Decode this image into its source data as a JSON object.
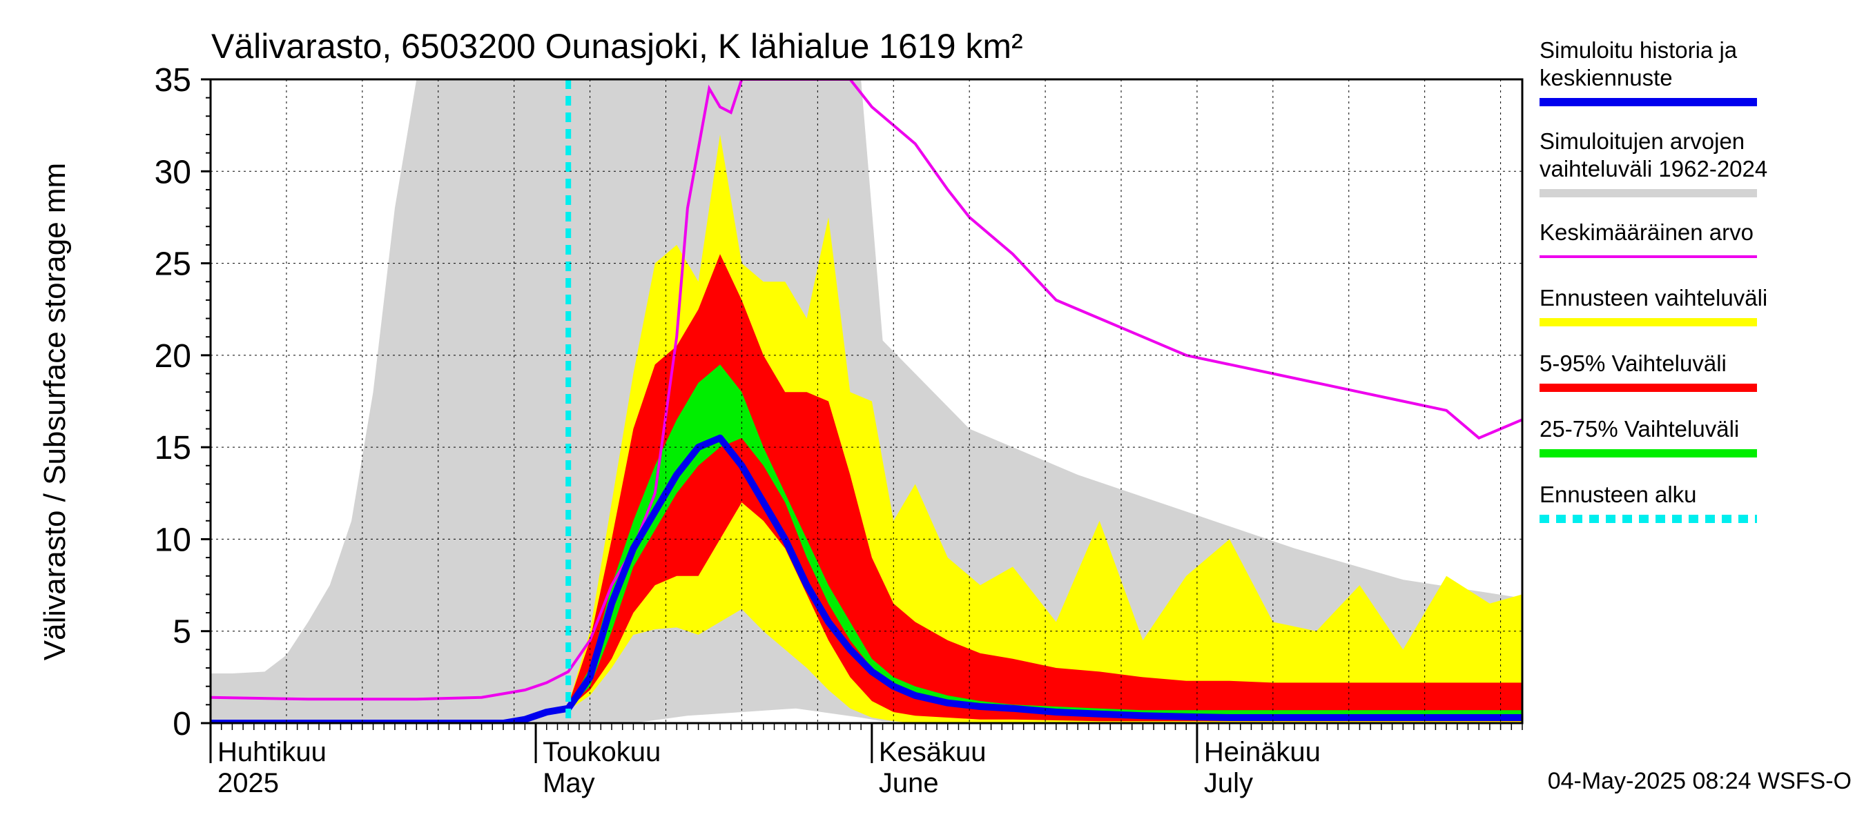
{
  "chart_data": {
    "type": "area",
    "title": "Välivarasto, 6503200 Ounasjoki, K lähialue 1619 km²",
    "ylabel": "Välivarasto / Subsurface storage  mm",
    "ylim": [
      0,
      35
    ],
    "yticks": [
      0,
      5,
      10,
      15,
      20,
      25,
      30,
      35
    ],
    "xlim": [
      "2025-04-01",
      "2025-07-31"
    ],
    "month_labels": [
      {
        "date": "2025-04-01",
        "fi": "Huhtikuu",
        "en": "2025"
      },
      {
        "date": "2025-05-01",
        "fi": "Toukokuu",
        "en": "May"
      },
      {
        "date": "2025-06-01",
        "fi": "Kesäkuu",
        "en": "June"
      },
      {
        "date": "2025-07-01",
        "fi": "Heinäkuu",
        "en": "July"
      }
    ],
    "grid": true,
    "legend_position": "right",
    "colors": {
      "history": "#0000ee",
      "range_hist": "#d3d3d3",
      "mean": "#ee00ee",
      "range_fc": "#ffff00",
      "p5_95": "#ff0000",
      "p25_75": "#00ee00",
      "forecast_start": "#00eeee"
    },
    "legend": [
      {
        "key": "history",
        "lines": [
          "Simuloitu historia ja",
          "keskiennuste"
        ],
        "style": "line"
      },
      {
        "key": "range_hist",
        "lines": [
          "Simuloitujen arvojen",
          "vaihteluväli 1962-2024"
        ],
        "style": "line"
      },
      {
        "key": "mean",
        "lines": [
          "Keskimääräinen arvo"
        ],
        "style": "thin"
      },
      {
        "key": "range_fc",
        "lines": [
          "Ennusteen vaihteluväli"
        ],
        "style": "line"
      },
      {
        "key": "p5_95",
        "lines": [
          "5-95% Vaihteluväli"
        ],
        "style": "line"
      },
      {
        "key": "p25_75",
        "lines": [
          "25-75% Vaihteluväli"
        ],
        "style": "line"
      },
      {
        "key": "forecast_start",
        "lines": [
          "Ennusteen alku"
        ],
        "style": "dashed"
      }
    ],
    "forecast_start": "2025-05-04",
    "footer": "04-May-2025 08:24 WSFS-O",
    "series": {
      "hist_range": {
        "x": [
          "2025-04-01",
          "2025-04-03",
          "2025-04-06",
          "2025-04-08",
          "2025-04-10",
          "2025-04-12",
          "2025-04-14",
          "2025-04-16",
          "2025-04-18",
          "2025-04-20",
          "2025-04-22",
          "2025-04-24",
          "2025-04-26",
          "2025-04-28",
          "2025-04-30",
          "2025-05-05",
          "2025-05-10",
          "2025-05-15",
          "2025-05-20",
          "2025-05-25",
          "2025-05-31",
          "2025-06-02",
          "2025-06-10",
          "2025-06-20",
          "2025-06-30",
          "2025-07-10",
          "2025-07-20",
          "2025-07-31"
        ],
        "lower": [
          0,
          0,
          0,
          0,
          0,
          0,
          0,
          0,
          0,
          0,
          0,
          0,
          0,
          0,
          0,
          0,
          0,
          0.4,
          0.6,
          0.8,
          0.3,
          0.1,
          0.05,
          0,
          0,
          0,
          0,
          0
        ],
        "upper": [
          2.7,
          2.7,
          2.8,
          3.7,
          5.5,
          7.5,
          11,
          18,
          28,
          35,
          35,
          35,
          35,
          35,
          35,
          35,
          35,
          35,
          35,
          35,
          35,
          20.8,
          16,
          13.5,
          11.5,
          9.5,
          7.8,
          6.8
        ]
      },
      "mean": {
        "x": [
          "2025-04-01",
          "2025-04-10",
          "2025-04-20",
          "2025-04-26",
          "2025-04-30",
          "2025-05-02",
          "2025-05-04",
          "2025-05-06",
          "2025-05-08",
          "2025-05-10",
          "2025-05-12",
          "2025-05-14",
          "2025-05-15",
          "2025-05-17",
          "2025-05-18",
          "2025-05-19",
          "2025-05-20",
          "2025-05-30",
          "2025-06-01",
          "2025-06-03",
          "2025-06-05",
          "2025-06-08",
          "2025-06-10",
          "2025-06-14",
          "2025-06-18",
          "2025-06-22",
          "2025-06-26",
          "2025-06-30",
          "2025-07-04",
          "2025-07-08",
          "2025-07-12",
          "2025-07-16",
          "2025-07-20",
          "2025-07-24",
          "2025-07-27",
          "2025-07-29",
          "2025-07-31"
        ],
        "y": [
          1.4,
          1.3,
          1.3,
          1.4,
          1.8,
          2.2,
          2.8,
          4.5,
          7.5,
          9.5,
          12.5,
          21,
          28,
          34.5,
          33.5,
          33.2,
          35,
          35,
          33.5,
          32.5,
          31.5,
          29,
          27.5,
          25.5,
          23,
          22,
          21,
          20,
          19.5,
          19,
          18.5,
          18,
          17.5,
          17,
          15.5,
          16,
          16.5
        ]
      },
      "forecast": {
        "x": [
          "2025-05-04",
          "2025-05-06",
          "2025-05-08",
          "2025-05-10",
          "2025-05-12",
          "2025-05-14",
          "2025-05-16",
          "2025-05-18",
          "2025-05-20",
          "2025-05-22",
          "2025-05-24",
          "2025-05-26",
          "2025-05-28",
          "2025-05-30",
          "2025-06-01",
          "2025-06-03",
          "2025-06-05",
          "2025-06-08",
          "2025-06-11",
          "2025-06-14",
          "2025-06-18",
          "2025-06-22",
          "2025-06-26",
          "2025-06-30",
          "2025-07-04",
          "2025-07-08",
          "2025-07-12",
          "2025-07-16",
          "2025-07-20",
          "2025-07-24",
          "2025-07-28",
          "2025-07-31"
        ],
        "min": [
          0.7,
          1.5,
          3,
          4.8,
          5.1,
          5.2,
          4.8,
          5.5,
          6.2,
          5,
          4,
          3,
          1.8,
          0.8,
          0.3,
          0.1,
          0,
          0,
          0,
          0,
          0,
          0,
          0,
          0,
          0,
          0,
          0,
          0,
          0,
          0,
          0,
          0
        ],
        "p5": [
          0.8,
          1.8,
          3.5,
          6,
          7.5,
          8,
          8,
          10,
          12,
          11,
          9.5,
          7,
          4.5,
          2.5,
          1.2,
          0.6,
          0.4,
          0.3,
          0.2,
          0.2,
          0.15,
          0.1,
          0.1,
          0.1,
          0.1,
          0.1,
          0.1,
          0.1,
          0.1,
          0.1,
          0.1,
          0.1
        ],
        "p25": [
          0.8,
          2,
          5,
          8.5,
          10.5,
          12.5,
          14,
          15,
          15.5,
          14,
          12,
          9,
          6.5,
          4.5,
          3,
          2,
          1.5,
          1.1,
          0.9,
          0.8,
          0.6,
          0.5,
          0.5,
          0.4,
          0.4,
          0.4,
          0.4,
          0.4,
          0.4,
          0.4,
          0.4,
          0.4
        ],
        "median": [
          0.8,
          2.5,
          6.5,
          9.5,
          11.5,
          13.5,
          15,
          15.5,
          14,
          12,
          10,
          7.5,
          5.5,
          4,
          2.8,
          2,
          1.5,
          1.1,
          0.9,
          0.8,
          0.6,
          0.5,
          0.4,
          0.35,
          0.3,
          0.3,
          0.3,
          0.3,
          0.3,
          0.3,
          0.3,
          0.3
        ],
        "p75": [
          0.9,
          3,
          7.5,
          11,
          14,
          16.5,
          18.5,
          19.5,
          18,
          15,
          12.5,
          10,
          7.5,
          5.5,
          3.5,
          2.5,
          2,
          1.5,
          1.2,
          1,
          0.9,
          0.8,
          0.7,
          0.7,
          0.7,
          0.7,
          0.7,
          0.7,
          0.7,
          0.7,
          0.7,
          0.7
        ],
        "p95": [
          1,
          4.5,
          10,
          16,
          19.5,
          20.5,
          22.5,
          25.5,
          23,
          20,
          18,
          18,
          17.5,
          13.5,
          9,
          6.5,
          5.5,
          4.5,
          3.8,
          3.5,
          3,
          2.8,
          2.5,
          2.3,
          2.3,
          2.2,
          2.2,
          2.2,
          2.2,
          2.2,
          2.2,
          2.2
        ],
        "max": [
          1,
          5,
          12,
          19,
          25,
          26,
          24,
          32,
          25,
          24,
          24,
          22,
          27.5,
          18,
          17.5,
          11,
          13,
          9,
          7.5,
          8.5,
          5.5,
          11,
          4.5,
          8,
          10,
          5.5,
          5,
          7.5,
          4,
          8,
          6.5,
          7
        ]
      }
    }
  }
}
